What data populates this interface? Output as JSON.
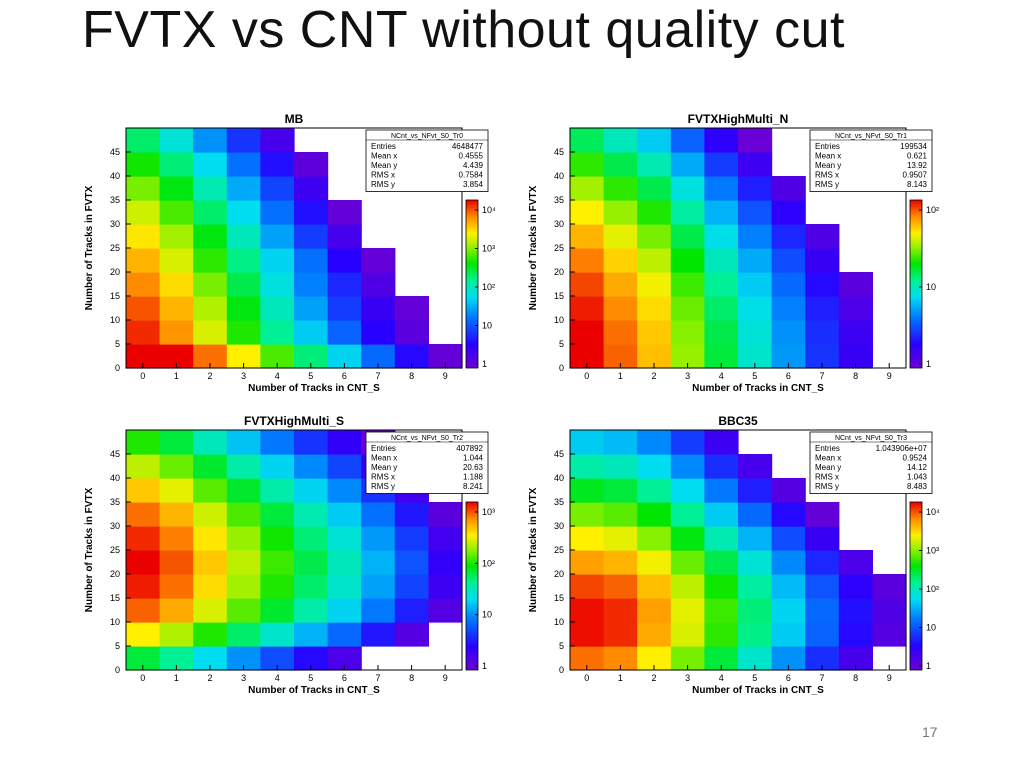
{
  "slide": {
    "title": "FVTX vs CNT without quality cut",
    "page_number": "17"
  },
  "colors": {
    "background": "#ffffff",
    "title_text": "#111111",
    "palette": "rainbow"
  },
  "chart_data": [
    {
      "type": "heatmap",
      "title": "MB",
      "xlabel": "Number of Tracks in CNT_S",
      "ylabel": "Number of Tracks in FVTX",
      "xlim": [
        -0.5,
        9.5
      ],
      "ylim": [
        0,
        50
      ],
      "x_ticks": [
        "0",
        "1",
        "2",
        "3",
        "4",
        "5",
        "6",
        "7",
        "8",
        "9"
      ],
      "y_ticks": [
        "0",
        "5",
        "10",
        "15",
        "20",
        "25",
        "30",
        "35",
        "40",
        "45"
      ],
      "z_log": true,
      "z_ticks": [
        "1",
        "10",
        "10²",
        "10³",
        "10⁴"
      ],
      "cells": [
        [
          1.0,
          1.0,
          0.92,
          0.8,
          0.67,
          0.54,
          0.41,
          0.28,
          0.15,
          0.02
        ],
        [
          0.97,
          0.89,
          0.77,
          0.64,
          0.52,
          0.4,
          0.27,
          0.14,
          0.04,
          0.0
        ],
        [
          0.94,
          0.86,
          0.74,
          0.61,
          0.48,
          0.35,
          0.22,
          0.11,
          0.02,
          0.0
        ],
        [
          0.9,
          0.82,
          0.7,
          0.57,
          0.44,
          0.31,
          0.19,
          0.06,
          0.0,
          0.0
        ],
        [
          0.86,
          0.77,
          0.65,
          0.53,
          0.41,
          0.29,
          0.14,
          0.02,
          0.0,
          0.0
        ],
        [
          0.81,
          0.73,
          0.61,
          0.48,
          0.35,
          0.22,
          0.08,
          0.0,
          0.0,
          0.0
        ],
        [
          0.76,
          0.67,
          0.55,
          0.42,
          0.29,
          0.16,
          0.02,
          0.0,
          0.0,
          0.0
        ],
        [
          0.7,
          0.61,
          0.49,
          0.36,
          0.23,
          0.1,
          0.0,
          0.0,
          0.0,
          0.0
        ],
        [
          0.63,
          0.54,
          0.42,
          0.29,
          0.16,
          0.03,
          0.0,
          0.0,
          0.0,
          0.0
        ],
        [
          0.55,
          0.45,
          0.33,
          0.21,
          0.08,
          0.0,
          0.0,
          0.0,
          0.0,
          0.0
        ]
      ],
      "stats": {
        "name": "NCnt_vs_NFvt_S0_Tr0",
        "rows": [
          [
            "Entries",
            "4648477"
          ],
          [
            "Mean x",
            "0.4555"
          ],
          [
            "Mean y",
            "4.439"
          ],
          [
            "RMS x",
            "0.7584"
          ],
          [
            "RMS y",
            "3.854"
          ]
        ]
      }
    },
    {
      "type": "heatmap",
      "title": "FVTXHighMulti_N",
      "xlabel": "Number of Tracks in CNT_S",
      "ylabel": "Number of Tracks in FVTX",
      "xlim": [
        -0.5,
        9.5
      ],
      "ylim": [
        0,
        50
      ],
      "x_ticks": [
        "0",
        "1",
        "2",
        "3",
        "4",
        "5",
        "6",
        "7",
        "8",
        "9"
      ],
      "y_ticks": [
        "0",
        "5",
        "10",
        "15",
        "20",
        "25",
        "30",
        "35",
        "40",
        "45"
      ],
      "z_log": true,
      "z_ticks": [
        "1",
        "10",
        "10²"
      ],
      "cells": [
        [
          1.0,
          0.93,
          0.85,
          0.72,
          0.58,
          0.46,
          0.34,
          0.21,
          0.11,
          0.0
        ],
        [
          1.0,
          0.92,
          0.84,
          0.71,
          0.57,
          0.45,
          0.33,
          0.2,
          0.1,
          0.0
        ],
        [
          0.98,
          0.9,
          0.82,
          0.69,
          0.55,
          0.43,
          0.31,
          0.18,
          0.07,
          0.0
        ],
        [
          0.95,
          0.87,
          0.79,
          0.66,
          0.52,
          0.4,
          0.28,
          0.15,
          0.04,
          0.0
        ],
        [
          0.91,
          0.83,
          0.75,
          0.62,
          0.48,
          0.36,
          0.24,
          0.11,
          0.0,
          0.0
        ],
        [
          0.86,
          0.78,
          0.7,
          0.57,
          0.43,
          0.31,
          0.19,
          0.06,
          0.0,
          0.0
        ],
        [
          0.8,
          0.72,
          0.64,
          0.51,
          0.37,
          0.25,
          0.13,
          0.0,
          0.0,
          0.0
        ],
        [
          0.73,
          0.65,
          0.57,
          0.44,
          0.3,
          0.18,
          0.06,
          0.0,
          0.0,
          0.0
        ],
        [
          0.65,
          0.57,
          0.49,
          0.36,
          0.22,
          0.1,
          0.0,
          0.0,
          0.0,
          0.0
        ],
        [
          0.56,
          0.48,
          0.4,
          0.27,
          0.13,
          0.01,
          0.0,
          0.0,
          0.0,
          0.0
        ]
      ],
      "stats": {
        "name": "NCnt_vs_NFvt_S0_Tr1",
        "rows": [
          [
            "Entries",
            "199534"
          ],
          [
            "Mean x",
            "0.621"
          ],
          [
            "Mean y",
            "13.92"
          ],
          [
            "RMS x",
            "0.9507"
          ],
          [
            "RMS y",
            "8.143"
          ]
        ]
      }
    },
    {
      "type": "heatmap",
      "title": "FVTXHighMulti_S",
      "xlabel": "Number of Tracks in CNT_S",
      "ylabel": "Number of Tracks in FVTX",
      "xlim": [
        -0.5,
        9.5
      ],
      "ylim": [
        0,
        50
      ],
      "x_ticks": [
        "0",
        "1",
        "2",
        "3",
        "4",
        "5",
        "6",
        "7",
        "8",
        "9"
      ],
      "y_ticks": [
        "0",
        "5",
        "10",
        "15",
        "20",
        "25",
        "30",
        "35",
        "40",
        "45"
      ],
      "z_log": true,
      "z_ticks": [
        "1",
        "10",
        "10²",
        "10³"
      ],
      "cells": [
        [
          0.58,
          0.52,
          0.42,
          0.33,
          0.24,
          0.15,
          0.07,
          0.0,
          0.0,
          0.0
        ],
        [
          0.8,
          0.74,
          0.64,
          0.55,
          0.46,
          0.37,
          0.28,
          0.17,
          0.05,
          0.0
        ],
        [
          0.93,
          0.87,
          0.77,
          0.68,
          0.59,
          0.5,
          0.41,
          0.3,
          0.18,
          0.05
        ],
        [
          0.98,
          0.92,
          0.82,
          0.73,
          0.64,
          0.55,
          0.46,
          0.35,
          0.23,
          0.1
        ],
        [
          1.0,
          0.94,
          0.84,
          0.75,
          0.66,
          0.57,
          0.48,
          0.37,
          0.25,
          0.12
        ],
        [
          0.97,
          0.91,
          0.81,
          0.72,
          0.63,
          0.54,
          0.45,
          0.34,
          0.22,
          0.09
        ],
        [
          0.92,
          0.86,
          0.76,
          0.67,
          0.58,
          0.49,
          0.4,
          0.29,
          0.17,
          0.04
        ],
        [
          0.84,
          0.78,
          0.68,
          0.59,
          0.5,
          0.41,
          0.32,
          0.21,
          0.09,
          0.0
        ],
        [
          0.75,
          0.69,
          0.59,
          0.5,
          0.41,
          0.32,
          0.23,
          0.12,
          0.0,
          0.0
        ],
        [
          0.64,
          0.58,
          0.48,
          0.39,
          0.3,
          0.21,
          0.12,
          0.01,
          0.0,
          0.0
        ]
      ],
      "stats": {
        "name": "NCnt_vs_NFvt_S0_Tr2",
        "rows": [
          [
            "Entries",
            "407892"
          ],
          [
            "Mean x",
            "1.044"
          ],
          [
            "Mean y",
            "20.63"
          ],
          [
            "RMS x",
            "1.188"
          ],
          [
            "RMS y",
            "8.241"
          ]
        ]
      }
    },
    {
      "type": "heatmap",
      "title": "BBC35",
      "xlabel": "Number of Tracks in CNT_S",
      "ylabel": "Number of Tracks in FVTX",
      "xlim": [
        -0.5,
        9.5
      ],
      "ylim": [
        0,
        50
      ],
      "x_ticks": [
        "0",
        "1",
        "2",
        "3",
        "4",
        "5",
        "6",
        "7",
        "8",
        "9"
      ],
      "y_ticks": [
        "0",
        "5",
        "10",
        "15",
        "20",
        "25",
        "30",
        "35",
        "40",
        "45"
      ],
      "z_log": true,
      "z_ticks": [
        "1",
        "10",
        "10²",
        "10³",
        "10⁴"
      ],
      "cells": [
        [
          0.92,
          0.9,
          0.8,
          0.7,
          0.58,
          0.46,
          0.33,
          0.2,
          0.08,
          0.0
        ],
        [
          0.99,
          0.97,
          0.87,
          0.77,
          0.65,
          0.53,
          0.4,
          0.27,
          0.15,
          0.05
        ],
        [
          0.99,
          0.97,
          0.88,
          0.78,
          0.66,
          0.54,
          0.41,
          0.28,
          0.16,
          0.06
        ],
        [
          0.95,
          0.93,
          0.85,
          0.75,
          0.63,
          0.51,
          0.38,
          0.25,
          0.13,
          0.04
        ],
        [
          0.88,
          0.86,
          0.79,
          0.69,
          0.57,
          0.45,
          0.32,
          0.19,
          0.07,
          0.0
        ],
        [
          0.8,
          0.78,
          0.71,
          0.61,
          0.49,
          0.37,
          0.24,
          0.11,
          0.0,
          0.0
        ],
        [
          0.7,
          0.68,
          0.62,
          0.52,
          0.4,
          0.28,
          0.15,
          0.02,
          0.0,
          0.0
        ],
        [
          0.6,
          0.58,
          0.52,
          0.42,
          0.3,
          0.18,
          0.05,
          0.0,
          0.0,
          0.0
        ],
        [
          0.5,
          0.48,
          0.42,
          0.32,
          0.2,
          0.08,
          0.0,
          0.0,
          0.0,
          0.0
        ],
        [
          0.4,
          0.38,
          0.32,
          0.22,
          0.1,
          0.0,
          0.0,
          0.0,
          0.0,
          0.0
        ]
      ],
      "stats": {
        "name": "NCnt_vs_NFvt_S0_Tr3",
        "rows": [
          [
            "Entries",
            "1.043906e+07"
          ],
          [
            "Mean x",
            "0.9524"
          ],
          [
            "Mean y",
            "14.12"
          ],
          [
            "RMS x",
            "1.043"
          ],
          [
            "RMS y",
            "8.483"
          ]
        ]
      }
    }
  ]
}
